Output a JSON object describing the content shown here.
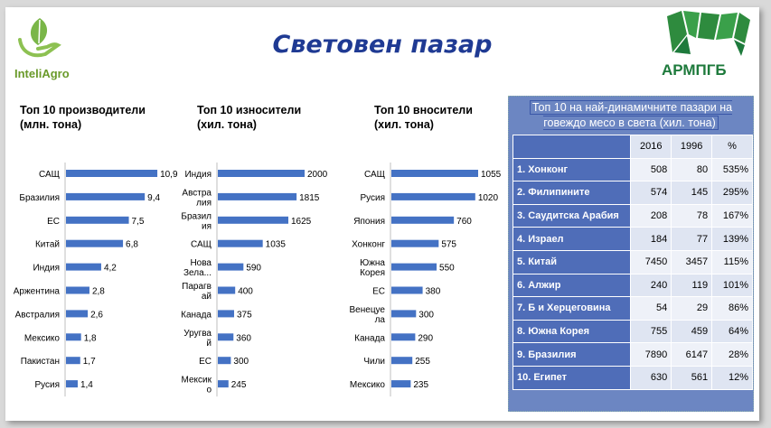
{
  "header": {
    "title": "Световен пазар",
    "left_logo": "InteliAgro",
    "right_logo": "АРМПГБ"
  },
  "chart_data": [
    {
      "type": "bar",
      "title": "Топ 10 производители (млн. тона)",
      "categories": [
        "САЩ",
        "Бразилия",
        "ЕС",
        "Китай",
        "Индия",
        "Аржентина",
        "Австралия",
        "Мексико",
        "Пакистан",
        "Русия"
      ],
      "values": [
        10.9,
        9.4,
        7.5,
        6.8,
        4.2,
        2.8,
        2.6,
        1.8,
        1.7,
        1.4
      ],
      "value_labels": [
        "10,9",
        "9,4",
        "7,5",
        "6,8",
        "4,2",
        "2,8",
        "2,6",
        "1,8",
        "1,7",
        "1,4"
      ],
      "xlim": [
        0,
        11
      ]
    },
    {
      "type": "bar",
      "title": "Топ 10 износители (хил. тона)",
      "categories": [
        "Индия",
        "Австралия",
        "Бразилия",
        "САЩ",
        "Нова Зела...",
        "Парагвай",
        "Канада",
        "Уругвай",
        "ЕС",
        "Мексико"
      ],
      "values": [
        2000,
        1815,
        1625,
        1035,
        590,
        400,
        375,
        360,
        300,
        245
      ],
      "value_labels": [
        "2000",
        "1815",
        "1625",
        "1035",
        "590",
        "400",
        "375",
        "360",
        "300",
        "245"
      ],
      "xlim": [
        0,
        2000
      ]
    },
    {
      "type": "bar",
      "title": "Топ 10 вносители (хил. тона)",
      "categories": [
        "САЩ",
        "Русия",
        "Япония",
        "Хонконг",
        "Южна Корея",
        "ЕС",
        "Венецуела",
        "Канада",
        "Чили",
        "Мексико"
      ],
      "values": [
        1055,
        1020,
        760,
        575,
        550,
        380,
        300,
        290,
        255,
        235
      ],
      "value_labels": [
        "1055",
        "1020",
        "760",
        "575",
        "550",
        "380",
        "300",
        "290",
        "255",
        "235"
      ],
      "xlim": [
        0,
        1055
      ]
    }
  ],
  "table": {
    "title": "Топ 10 на най-динамичните пазари на говеждо месо в света (хил. тона)",
    "columns": [
      "2016",
      "1996",
      "%"
    ],
    "rows": [
      {
        "name": "1. Хонконг",
        "v2016": "508",
        "v1996": "80",
        "pct": "535%"
      },
      {
        "name": "2. Филипините",
        "v2016": "574",
        "v1996": "145",
        "pct": "295%"
      },
      {
        "name": "3. Саудитска Арабия",
        "v2016": "208",
        "v1996": "78",
        "pct": "167%"
      },
      {
        "name": "4. Израел",
        "v2016": "184",
        "v1996": "77",
        "pct": "139%"
      },
      {
        "name": "5. Китай",
        "v2016": "7450",
        "v1996": "3457",
        "pct": "115%"
      },
      {
        "name": "6. Алжир",
        "v2016": "240",
        "v1996": "119",
        "pct": "101%"
      },
      {
        "name": "7. Б и Херцеговина",
        "v2016": "54",
        "v1996": "29",
        "pct": "86%"
      },
      {
        "name": "8. Южна Корея",
        "v2016": "755",
        "v1996": "459",
        "pct": "64%"
      },
      {
        "name": "9. Бразилия",
        "v2016": "7890",
        "v1996": "6147",
        "pct": "28%"
      },
      {
        "name": "10. Египет",
        "v2016": "630",
        "v1996": "561",
        "pct": "12%"
      }
    ]
  },
  "colors": {
    "bar": "#4472c4",
    "title": "#1f3a93",
    "table_bg": "#4f6db8"
  }
}
